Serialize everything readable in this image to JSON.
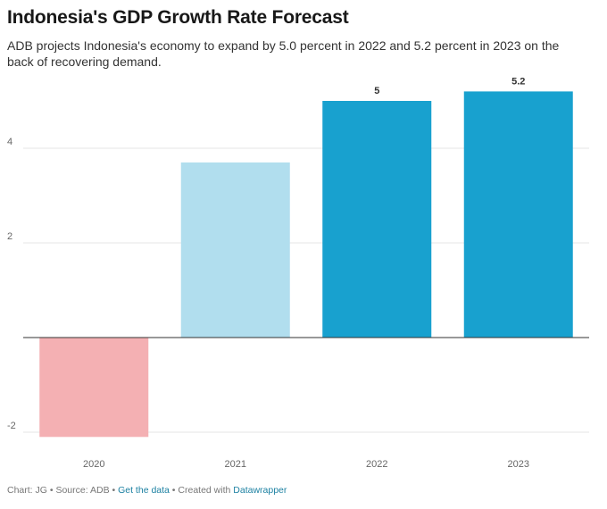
{
  "title": "Indonesia's GDP Growth Rate Forecast",
  "subtitle": "ADB projects Indonesia's economy to expand by 5.0 percent in 2022 and 5.2 percent in 2023 on the back of recovering demand.",
  "footer": {
    "chart_by": "Chart: JG",
    "sep1": " • ",
    "source": "Source: ADB",
    "sep2": " • ",
    "get_data": "Get the data",
    "sep3": " • ",
    "created_with": "Created with ",
    "tool": "Datawrapper"
  },
  "colors": {
    "negative": "#f4b0b3",
    "past": "#b1deee",
    "forecast": "#18a1cf",
    "link": "#1d81a2"
  },
  "chart_data": {
    "type": "bar",
    "title": "Indonesia's GDP Growth Rate Forecast",
    "xlabel": "",
    "ylabel": "",
    "categories": [
      "2020",
      "2021",
      "2022",
      "2023"
    ],
    "values": [
      -2.1,
      3.7,
      5,
      5.2
    ],
    "value_labels": [
      "",
      "",
      "5",
      "5.2"
    ],
    "bar_colors": [
      "#f4b0b3",
      "#b1deee",
      "#18a1cf",
      "#18a1cf"
    ],
    "y_ticks": [
      -2,
      2,
      4
    ],
    "y_tick_labels": [
      "-2",
      "2",
      "4"
    ],
    "ylim": [
      -2.1,
      5.2
    ],
    "grid": true,
    "legend": "none"
  }
}
